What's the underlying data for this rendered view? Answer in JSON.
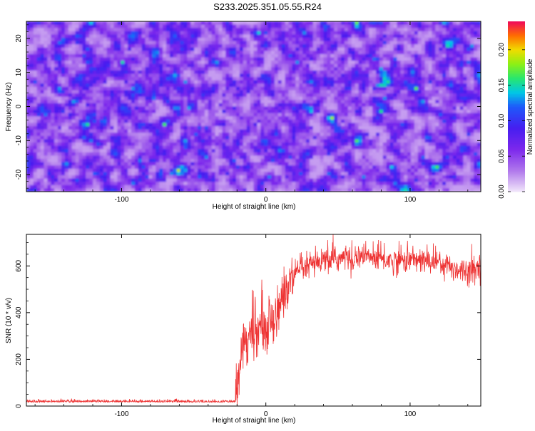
{
  "title": "S233.2025.351.05.55.R24",
  "chart_data": [
    {
      "type": "heatmap",
      "xlabel": "Height of straight line (km)",
      "ylabel": "Frequency (Hz)",
      "xlim": [
        -166,
        149
      ],
      "ylim": [
        -25,
        25
      ],
      "xticks": [
        -100,
        0,
        100
      ],
      "yticks": [
        -20,
        -10,
        0,
        10,
        20
      ],
      "colorbar": {
        "label": "Normalized spectral amplitude",
        "range": [
          0,
          0.24
        ],
        "ticks": [
          0.0,
          0.05,
          0.1,
          0.15,
          0.2
        ],
        "tick_labels": [
          "0.00",
          "0.05",
          "0.10",
          "0.15",
          "0.20"
        ]
      },
      "description_values": {
        "background_level": 0.04,
        "peak_level": 0.21
      }
    },
    {
      "type": "line",
      "xlabel": "Height of straight line (km)",
      "ylabel": "SNR (10 * v/v)",
      "xlim": [
        -166,
        149
      ],
      "ylim": [
        0,
        735
      ],
      "xticks": [
        -100,
        0,
        100
      ],
      "yticks": [
        0,
        200,
        400,
        600
      ],
      "color": "#ee3333",
      "profile": {
        "x": [
          -166,
          -140,
          -100,
          -60,
          -21,
          -19,
          -17,
          -14,
          -10,
          -5,
          0,
          5,
          10,
          15,
          20,
          30,
          40,
          50,
          60,
          70,
          80,
          90,
          100,
          110,
          120,
          130,
          140,
          149
        ],
        "y": [
          20,
          20,
          20,
          20,
          20,
          150,
          260,
          290,
          300,
          330,
          330,
          380,
          440,
          500,
          560,
          600,
          620,
          630,
          640,
          640,
          630,
          620,
          630,
          620,
          620,
          590,
          580,
          600
        ]
      }
    }
  ]
}
